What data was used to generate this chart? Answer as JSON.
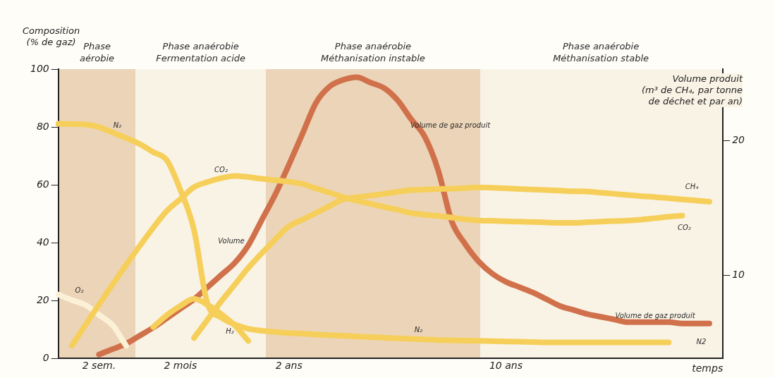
{
  "chart_data": {
    "type": "line",
    "xlabel": "temps",
    "ylabel": "Composition\n(% de gaz)",
    "y2label": "Volume produit\n(m³ de CH₄, par tonne\nde déchet et par an)",
    "categories": [
      null,
      null,
      null,
      "2 sem.",
      null,
      null,
      null,
      null,
      null,
      "2 mois",
      null,
      null,
      null,
      null,
      null,
      null,
      null,
      "2 ans",
      null,
      null,
      null,
      null,
      null,
      null,
      null,
      null,
      null,
      null,
      null,
      null,
      null,
      null,
      null,
      "10 ans",
      null,
      null,
      null,
      null,
      null,
      null,
      null,
      null,
      null,
      null,
      null,
      null,
      null,
      null,
      null,
      null
    ],
    "ylim": [
      0,
      100
    ],
    "yticks": [
      0,
      20,
      40,
      60,
      80,
      100
    ],
    "y2lim": [
      3.8,
      25.3
    ],
    "y2ticks": [
      10,
      20
    ],
    "grid": false,
    "legend": false,
    "marker": "none",
    "line_style": "solid",
    "series": [
      {
        "color": "#f6cf5a",
        "values": [
          81.1,
          81.0,
          80.9,
          80.0,
          78.1,
          76.2,
          74.1,
          71.3,
          68.5,
          58.2,
          44.5,
          18.9,
          14.2,
          11.8,
          10.3,
          9.6,
          9.2,
          8.8,
          8.6,
          8.3,
          8.1,
          7.9,
          7.6,
          7.4,
          7.2,
          7.0,
          6.8,
          6.6,
          6.4,
          6.3,
          6.2,
          6.1,
          6.0,
          5.9,
          5.8,
          5.7,
          5.6,
          5.6,
          5.6,
          5.6,
          5.6,
          5.6,
          5.6,
          5.6,
          5.6,
          5.6,
          null,
          null,
          null,
          null
        ]
      },
      {
        "color": "#f6cf5a",
        "values": [
          null,
          null,
          null,
          null,
          null,
          null,
          null,
          10.9,
          15.0,
          18.2,
          20.6,
          18.6,
          15.4,
          11.5,
          6.1,
          null,
          null,
          null,
          null,
          null,
          null,
          null,
          null,
          null,
          null,
          null,
          null,
          null,
          null,
          null,
          null,
          null,
          null,
          null,
          null,
          null,
          null,
          null,
          null,
          null,
          null,
          null,
          null,
          null,
          null,
          null,
          null,
          null,
          null,
          null
        ]
      },
      {
        "color": "#f6cf5a",
        "values": [
          null,
          4.5,
          11.6,
          18.7,
          25.6,
          32.4,
          38.9,
          45.2,
          51.0,
          55.1,
          59.2,
          61.0,
          62.3,
          63.1,
          62.7,
          62.1,
          61.6,
          61.1,
          60.3,
          58.8,
          57.3,
          55.8,
          54.5,
          53.5,
          52.4,
          51.4,
          50.3,
          49.7,
          49.3,
          48.7,
          48.1,
          47.7,
          47.6,
          47.4,
          47.3,
          47.2,
          47.0,
          46.9,
          46.9,
          47.1,
          47.3,
          47.5,
          47.7,
          48.0,
          48.5,
          49.0,
          49.4,
          null,
          null,
          null
        ]
      },
      {
        "color": "#f6cf5a",
        "values": [
          null,
          null,
          null,
          null,
          null,
          null,
          null,
          null,
          null,
          null,
          7.1,
          13.4,
          19.7,
          25.5,
          31.3,
          36.4,
          41.2,
          45.7,
          48.0,
          50.3,
          52.7,
          55.0,
          55.7,
          56.3,
          56.9,
          57.6,
          58.2,
          58.4,
          58.6,
          58.7,
          58.9,
          59.1,
          59.0,
          58.8,
          58.6,
          58.4,
          58.2,
          58.0,
          57.8,
          57.7,
          57.3,
          56.9,
          56.5,
          56.1,
          55.8,
          55.4,
          55.0,
          54.6,
          54.2,
          null
        ]
      },
      {
        "color": "#fbf1d6",
        "values": [
          22.1,
          20.2,
          18.5,
          15.1,
          11.5,
          4.4,
          null,
          null,
          null,
          null,
          null,
          null,
          null,
          null,
          null,
          null,
          null,
          null,
          null,
          null,
          null,
          null,
          null,
          null,
          null,
          null,
          null,
          null,
          null,
          null,
          null,
          null,
          null,
          null,
          null,
          null,
          null,
          null,
          null,
          null,
          null,
          null,
          null,
          null,
          null,
          null,
          null,
          null,
          null,
          null
        ]
      },
      {
        "color": "#d0714b",
        "axis": "y2",
        "values": [
          null,
          null,
          null,
          4.1,
          4.5,
          4.9,
          5.5,
          6.1,
          6.8,
          7.5,
          8.2,
          9.1,
          10.0,
          10.9,
          12.2,
          14.1,
          16.0,
          18.2,
          20.5,
          22.8,
          24.0,
          24.5,
          24.7,
          24.3,
          23.9,
          23.0,
          21.6,
          20.3,
          17.8,
          14.0,
          12.3,
          11.0,
          10.1,
          9.5,
          9.1,
          8.7,
          8.2,
          7.7,
          7.4,
          7.1,
          6.9,
          6.7,
          6.5,
          6.5,
          6.5,
          6.5,
          6.4,
          6.4,
          6.4,
          null
        ]
      }
    ],
    "annotations": [
      "Phase\naérobie",
      "Phase anaérobie\nFermentation acide",
      "Phase anaérobie\nMéthanisation instable",
      "Phase anaérobie\nMéthanisation stable",
      "N₂",
      "CO₂",
      "O₂",
      "H₂",
      "Volume",
      "Volume de gaz produit",
      "N₂",
      "CH₄",
      "CO₂",
      "Volume de gaz produit",
      "N2"
    ]
  }
}
